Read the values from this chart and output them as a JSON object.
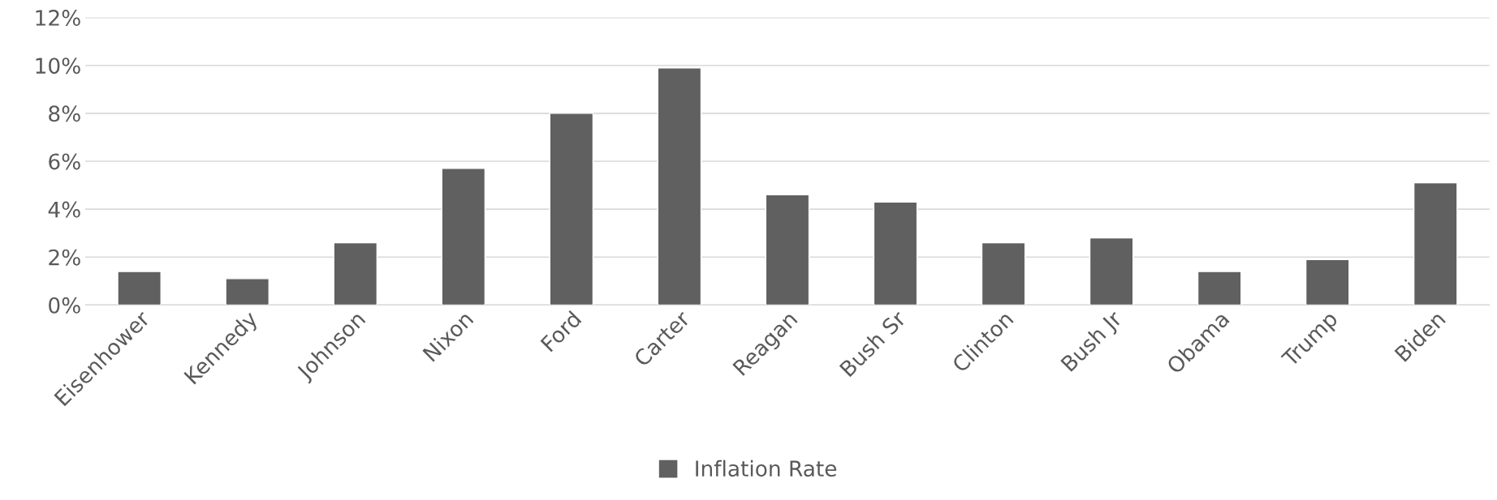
{
  "chart_data": {
    "type": "bar",
    "categories": [
      "Eisenhower",
      "Kennedy",
      "Johnson",
      "Nixon",
      "Ford",
      "Carter",
      "Reagan",
      "Bush Sr",
      "Clinton",
      "Bush Jr",
      "Obama",
      "Trump",
      "Biden"
    ],
    "series": [
      {
        "name": "Inflation Rate",
        "color": "#606060",
        "values": [
          1.4,
          1.1,
          2.6,
          5.7,
          8.0,
          9.9,
          4.6,
          4.3,
          2.6,
          2.8,
          1.4,
          1.9,
          5.1
        ]
      }
    ],
    "ylim": [
      0,
      12
    ],
    "yticks": [
      {
        "value": 0,
        "label": "0%"
      },
      {
        "value": 2,
        "label": "2%"
      },
      {
        "value": 4,
        "label": "4%"
      },
      {
        "value": 6,
        "label": "6%"
      },
      {
        "value": 8,
        "label": "8%"
      },
      {
        "value": 10,
        "label": "10%"
      },
      {
        "value": 12,
        "label": "12%"
      }
    ],
    "grid": "y",
    "legend": "bottom"
  }
}
